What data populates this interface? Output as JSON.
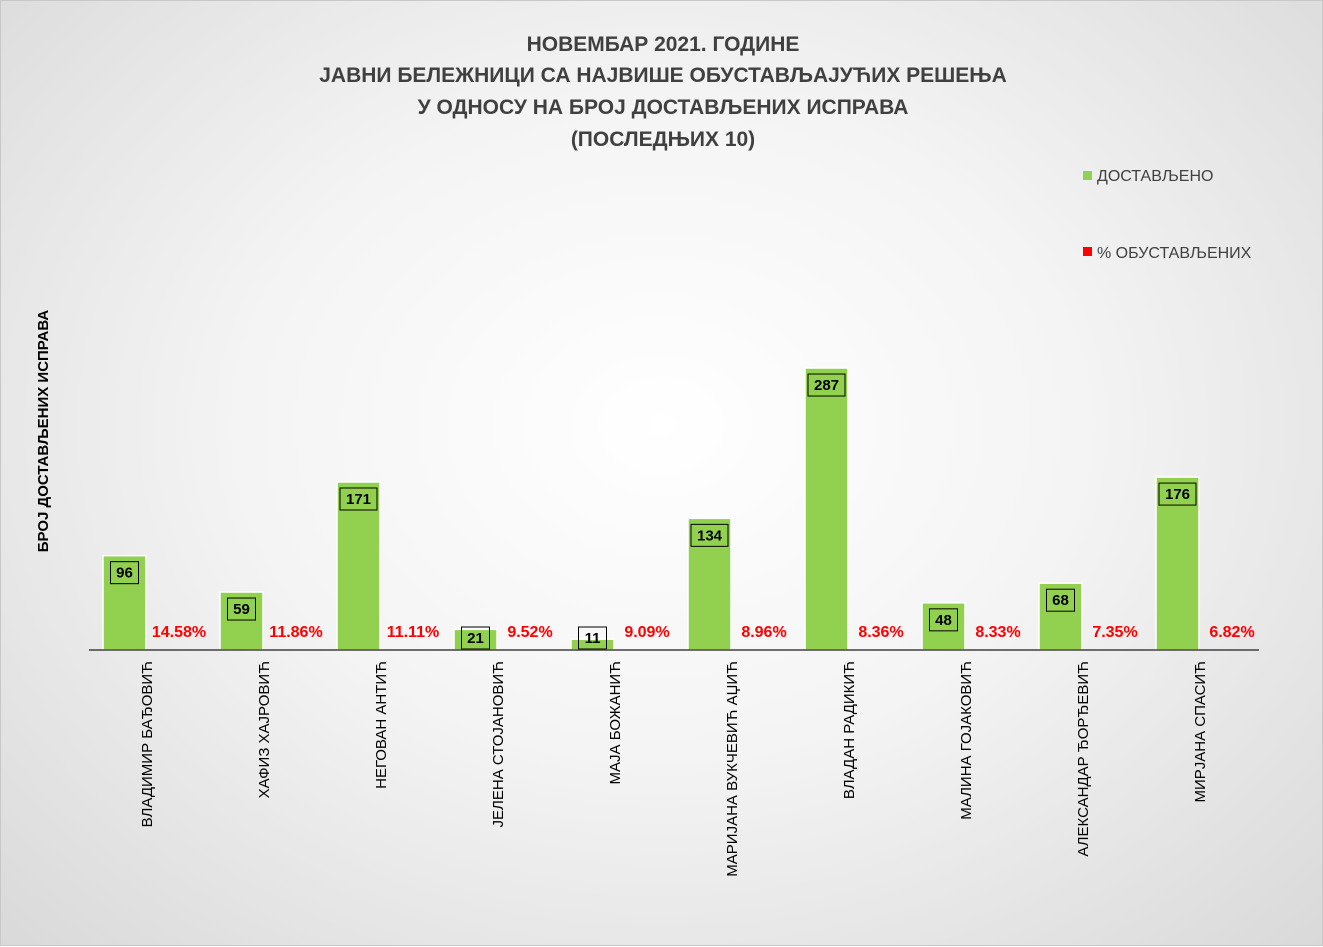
{
  "chart_data": {
    "type": "bar",
    "title_lines": [
      "НОВЕМБАР 2021. ГОДИНЕ",
      "ЈАВНИ БЕЛЕЖНИЦИ СА НАЈВИШЕ ОБУСТАВЉАЈУЋИХ РЕШЕЊА",
      "У ОДНОСУ НА БРОЈ ДОСТАВЉЕНИХ ИСПРАВА",
      "(ПОСЛЕДЊИХ 10)"
    ],
    "ylabel": "БРОЈ ДОСТАВЉЕНИХ ИСПРАВА",
    "xlabel": "",
    "ylim": [
      0,
      300
    ],
    "grid": false,
    "legend_position": "top-right",
    "categories": [
      "ВЛАДИМИР БАЂОВИЋ",
      "ХАФИЗ ХАЈРОВИЋ",
      "НЕГОВАН АНТИЋ",
      "ЈЕЛЕНА СТОЈАНОВИЋ",
      "МАЈА БОЖАНИЋ",
      "МАРИЈАНА ВУКЧЕВИЋ АЏИЋ",
      "ВЛАДАН РАДИКИЋ",
      "МАЛИНА ГОЈАКОВИЋ",
      "АЛЕКСАНДАР ЂОРЂЕВИЋ",
      "МИРЈАНА СПАСИЋ"
    ],
    "series": [
      {
        "name": "ДОСТАВЉЕНО",
        "color": "#92d050",
        "values": [
          96,
          59,
          171,
          21,
          11,
          134,
          287,
          48,
          68,
          176
        ],
        "labels": [
          "96",
          "59",
          "171",
          "21",
          "11",
          "134",
          "287",
          "48",
          "68",
          "176"
        ]
      },
      {
        "name": "% ОБУСТАВЉЕНИХ",
        "color": "#ff0000",
        "values": [
          14.58,
          11.86,
          11.11,
          9.52,
          9.09,
          8.96,
          8.36,
          8.33,
          7.35,
          6.82
        ],
        "labels": [
          "14.58%",
          "11.86%",
          "11.11%",
          "9.52%",
          "9.09%",
          "8.96%",
          "8.36%",
          "8.33%",
          "7.35%",
          "6.82%"
        ]
      }
    ]
  }
}
